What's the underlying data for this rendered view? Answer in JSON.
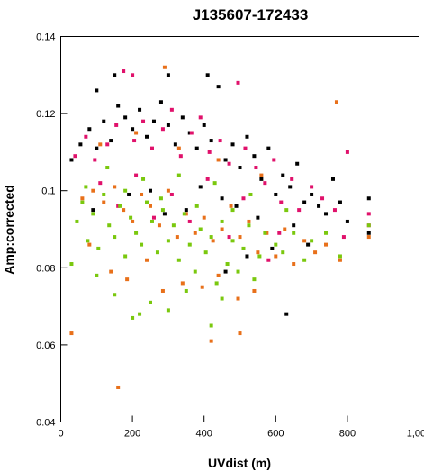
{
  "chart_data": {
    "type": "scatter",
    "title": "J135607-172433",
    "xlabel": "UVdist (m)",
    "ylabel": "Amp:corrected",
    "xlim": [
      0,
      1000
    ],
    "ylim": [
      0.04,
      0.14
    ],
    "x_ticks": [
      "0",
      "200",
      "400",
      "600",
      "800",
      "1,000"
    ],
    "y_ticks": [
      "0.04",
      "0.06",
      "0.08",
      "0.1",
      "0.12",
      "0.14"
    ],
    "x_tick_values": [
      0,
      200,
      400,
      600,
      800,
      1000
    ],
    "y_tick_values": [
      0.04,
      0.06,
      0.08,
      0.1,
      0.12,
      0.14
    ],
    "grid": false,
    "legend": "none",
    "series": [
      {
        "color": "#000000",
        "points": [
          [
            30,
            0.108
          ],
          [
            55,
            0.112
          ],
          [
            80,
            0.116
          ],
          [
            100,
            0.111
          ],
          [
            120,
            0.118
          ],
          [
            140,
            0.113
          ],
          [
            160,
            0.122
          ],
          [
            180,
            0.119
          ],
          [
            200,
            0.116
          ],
          [
            220,
            0.121
          ],
          [
            240,
            0.114
          ],
          [
            260,
            0.118
          ],
          [
            280,
            0.123
          ],
          [
            300,
            0.117
          ],
          [
            320,
            0.112
          ],
          [
            340,
            0.119
          ],
          [
            360,
            0.115
          ],
          [
            380,
            0.111
          ],
          [
            400,
            0.117
          ],
          [
            420,
            0.113
          ],
          [
            440,
            0.127
          ],
          [
            460,
            0.108
          ],
          [
            480,
            0.112
          ],
          [
            500,
            0.106
          ],
          [
            520,
            0.114
          ],
          [
            540,
            0.109
          ],
          [
            560,
            0.103
          ],
          [
            580,
            0.111
          ],
          [
            600,
            0.099
          ],
          [
            620,
            0.104
          ],
          [
            640,
            0.101
          ],
          [
            660,
            0.107
          ],
          [
            680,
            0.097
          ],
          [
            700,
            0.099
          ],
          [
            720,
            0.096
          ],
          [
            740,
            0.094
          ],
          [
            760,
            0.103
          ],
          [
            780,
            0.097
          ],
          [
            800,
            0.092
          ],
          [
            860,
            0.098
          ],
          [
            860,
            0.089
          ],
          [
            100,
            0.126
          ],
          [
            150,
            0.13
          ],
          [
            300,
            0.13
          ],
          [
            410,
            0.13
          ],
          [
            250,
            0.1
          ],
          [
            350,
            0.095
          ],
          [
            450,
            0.098
          ],
          [
            550,
            0.093
          ],
          [
            650,
            0.091
          ],
          [
            90,
            0.095
          ],
          [
            190,
            0.099
          ],
          [
            290,
            0.094
          ],
          [
            390,
            0.101
          ],
          [
            490,
            0.096
          ],
          [
            590,
            0.085
          ],
          [
            690,
            0.086
          ],
          [
            520,
            0.083
          ],
          [
            630,
            0.068
          ],
          [
            460,
            0.079
          ]
        ]
      },
      {
        "color": "#e0116b",
        "points": [
          [
            40,
            0.109
          ],
          [
            70,
            0.114
          ],
          [
            95,
            0.108
          ],
          [
            130,
            0.112
          ],
          [
            155,
            0.117
          ],
          [
            175,
            0.131
          ],
          [
            205,
            0.113
          ],
          [
            230,
            0.118
          ],
          [
            255,
            0.111
          ],
          [
            285,
            0.116
          ],
          [
            310,
            0.121
          ],
          [
            335,
            0.109
          ],
          [
            365,
            0.115
          ],
          [
            390,
            0.119
          ],
          [
            415,
            0.11
          ],
          [
            445,
            0.113
          ],
          [
            470,
            0.107
          ],
          [
            495,
            0.128
          ],
          [
            515,
            0.111
          ],
          [
            545,
            0.106
          ],
          [
            570,
            0.102
          ],
          [
            595,
            0.108
          ],
          [
            615,
            0.097
          ],
          [
            645,
            0.103
          ],
          [
            665,
            0.095
          ],
          [
            700,
            0.101
          ],
          [
            730,
            0.098
          ],
          [
            765,
            0.095
          ],
          [
            790,
            0.088
          ],
          [
            800,
            0.11
          ],
          [
            860,
            0.094
          ],
          [
            860,
            0.091
          ],
          [
            200,
            0.13
          ],
          [
            110,
            0.102
          ],
          [
            210,
            0.104
          ],
          [
            310,
            0.099
          ],
          [
            410,
            0.103
          ],
          [
            510,
            0.098
          ],
          [
            610,
            0.089
          ],
          [
            360,
            0.092
          ],
          [
            470,
            0.088
          ],
          [
            580,
            0.082
          ],
          [
            260,
            0.093
          ],
          [
            160,
            0.096
          ]
        ]
      },
      {
        "color": "#e8701a",
        "points": [
          [
            30,
            0.063
          ],
          [
            60,
            0.098
          ],
          [
            90,
            0.1
          ],
          [
            120,
            0.097
          ],
          [
            150,
            0.101
          ],
          [
            175,
            0.095
          ],
          [
            200,
            0.092
          ],
          [
            225,
            0.099
          ],
          [
            250,
            0.096
          ],
          [
            275,
            0.091
          ],
          [
            300,
            0.1
          ],
          [
            325,
            0.088
          ],
          [
            350,
            0.094
          ],
          [
            375,
            0.089
          ],
          [
            400,
            0.093
          ],
          [
            425,
            0.087
          ],
          [
            450,
            0.09
          ],
          [
            475,
            0.096
          ],
          [
            500,
            0.088
          ],
          [
            525,
            0.092
          ],
          [
            550,
            0.084
          ],
          [
            575,
            0.089
          ],
          [
            600,
            0.083
          ],
          [
            625,
            0.09
          ],
          [
            650,
            0.081
          ],
          [
            680,
            0.087
          ],
          [
            710,
            0.084
          ],
          [
            740,
            0.086
          ],
          [
            770,
            0.123
          ],
          [
            780,
            0.082
          ],
          [
            860,
            0.088
          ],
          [
            160,
            0.049
          ],
          [
            290,
            0.132
          ],
          [
            420,
            0.061
          ],
          [
            500,
            0.063
          ],
          [
            110,
            0.112
          ],
          [
            210,
            0.115
          ],
          [
            330,
            0.111
          ],
          [
            440,
            0.108
          ],
          [
            560,
            0.104
          ],
          [
            140,
            0.079
          ],
          [
            240,
            0.082
          ],
          [
            340,
            0.076
          ],
          [
            440,
            0.078
          ],
          [
            540,
            0.074
          ],
          [
            80,
            0.086
          ],
          [
            185,
            0.077
          ],
          [
            285,
            0.074
          ],
          [
            395,
            0.075
          ],
          [
            495,
            0.072
          ]
        ]
      },
      {
        "color": "#7ac80e",
        "points": [
          [
            30,
            0.081
          ],
          [
            45,
            0.092
          ],
          [
            60,
            0.097
          ],
          [
            75,
            0.087
          ],
          [
            90,
            0.094
          ],
          [
            105,
            0.085
          ],
          [
            120,
            0.099
          ],
          [
            135,
            0.091
          ],
          [
            150,
            0.088
          ],
          [
            165,
            0.096
          ],
          [
            180,
            0.083
          ],
          [
            195,
            0.093
          ],
          [
            210,
            0.089
          ],
          [
            225,
            0.086
          ],
          [
            240,
            0.097
          ],
          [
            255,
            0.092
          ],
          [
            270,
            0.084
          ],
          [
            285,
            0.095
          ],
          [
            300,
            0.087
          ],
          [
            315,
            0.091
          ],
          [
            330,
            0.082
          ],
          [
            345,
            0.094
          ],
          [
            360,
            0.086
          ],
          [
            375,
            0.079
          ],
          [
            390,
            0.09
          ],
          [
            405,
            0.084
          ],
          [
            420,
            0.088
          ],
          [
            435,
            0.076
          ],
          [
            450,
            0.092
          ],
          [
            465,
            0.081
          ],
          [
            480,
            0.087
          ],
          [
            495,
            0.079
          ],
          [
            510,
            0.085
          ],
          [
            525,
            0.091
          ],
          [
            540,
            0.077
          ],
          [
            555,
            0.083
          ],
          [
            570,
            0.089
          ],
          [
            600,
            0.086
          ],
          [
            620,
            0.084
          ],
          [
            650,
            0.089
          ],
          [
            680,
            0.082
          ],
          [
            700,
            0.087
          ],
          [
            740,
            0.089
          ],
          [
            780,
            0.083
          ],
          [
            860,
            0.091
          ],
          [
            150,
            0.073
          ],
          [
            250,
            0.071
          ],
          [
            350,
            0.074
          ],
          [
            450,
            0.072
          ],
          [
            200,
            0.067
          ],
          [
            300,
            0.069
          ],
          [
            100,
            0.078
          ],
          [
            230,
            0.103
          ],
          [
            130,
            0.106
          ],
          [
            330,
            0.104
          ],
          [
            430,
            0.102
          ],
          [
            70,
            0.101
          ],
          [
            180,
            0.1
          ],
          [
            280,
            0.098
          ],
          [
            380,
            0.096
          ],
          [
            480,
            0.095
          ],
          [
            530,
            0.099
          ],
          [
            630,
            0.095
          ],
          [
            220,
            0.068
          ],
          [
            420,
            0.065
          ]
        ]
      }
    ]
  }
}
